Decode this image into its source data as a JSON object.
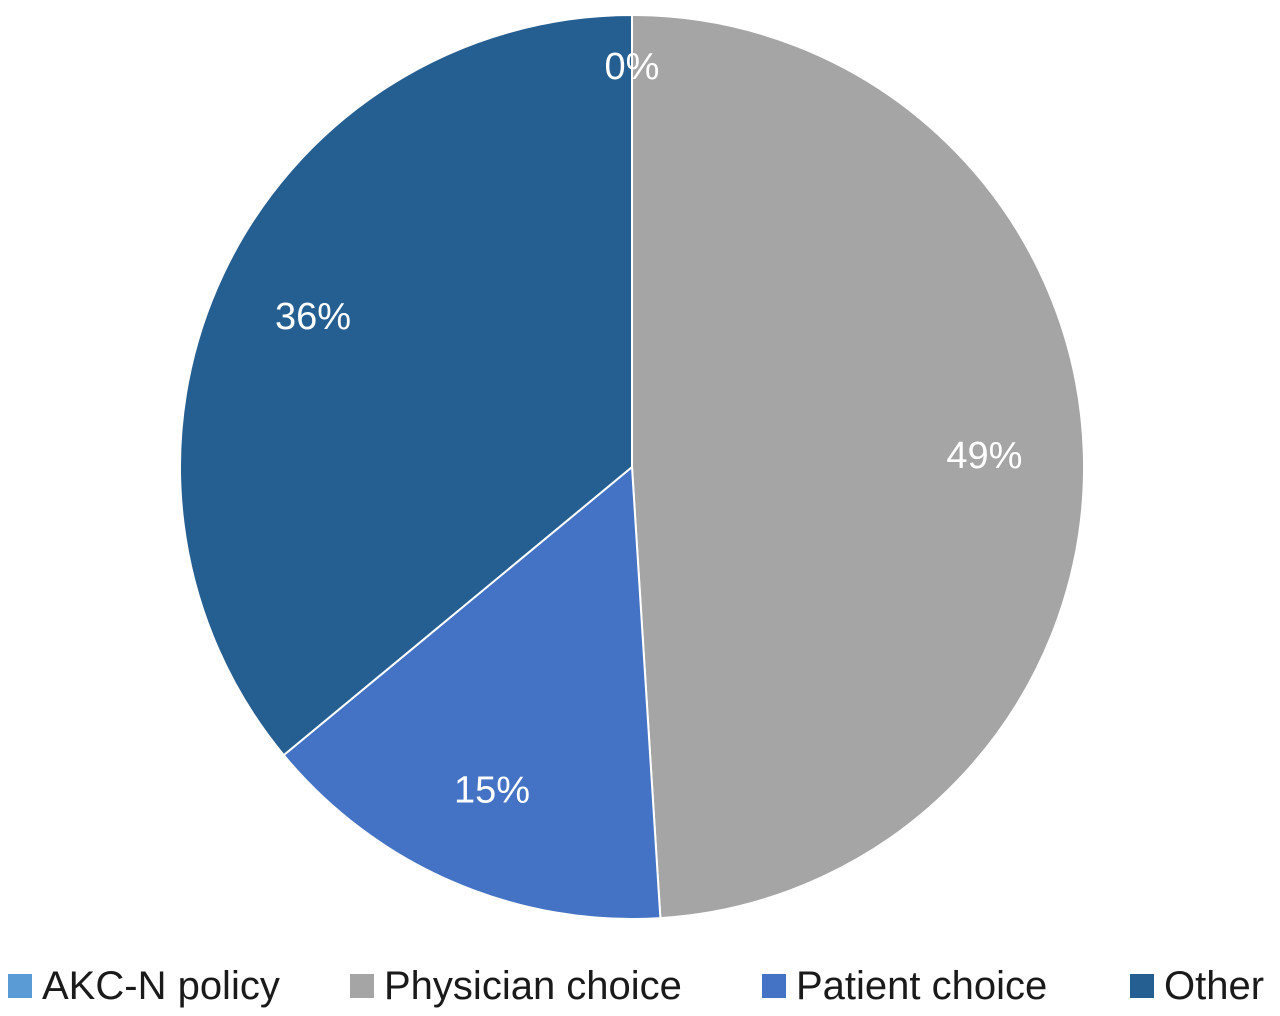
{
  "chart_data": {
    "type": "pie",
    "title": "",
    "categories": [
      "AKC-N policy",
      "Physician choice",
      "Patient choice",
      "Other"
    ],
    "values": [
      0,
      49,
      15,
      36
    ],
    "data_labels": [
      "0%",
      "49%",
      "15%",
      "36%"
    ],
    "colors": [
      "#5b9bd5",
      "#a5a5a5",
      "#4472c4",
      "#255e91"
    ],
    "start_angle": "12 o'clock",
    "direction": "clockwise",
    "legend_placement": "bottom"
  }
}
